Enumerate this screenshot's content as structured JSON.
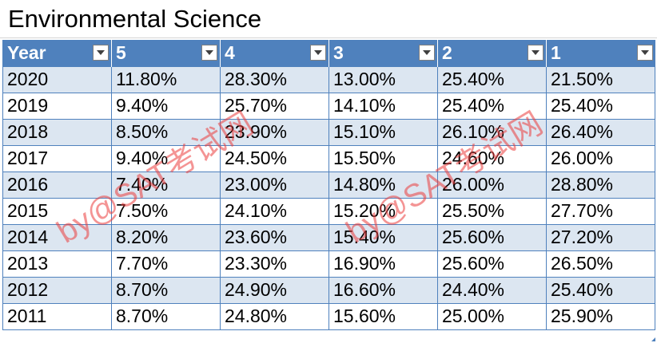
{
  "sheet": {
    "title": "Environmental Science"
  },
  "table": {
    "columns": [
      "Year",
      "5",
      "4",
      "3",
      "2",
      "1"
    ],
    "rows": [
      [
        "2020",
        "11.80%",
        "28.30%",
        "13.00%",
        "25.40%",
        "21.50%"
      ],
      [
        "2019",
        "9.40%",
        "25.70%",
        "14.10%",
        "25.40%",
        "25.40%"
      ],
      [
        "2018",
        "8.50%",
        "23.90%",
        "15.10%",
        "26.10%",
        "26.40%"
      ],
      [
        "2017",
        "9.40%",
        "24.50%",
        "15.50%",
        "24.60%",
        "26.00%"
      ],
      [
        "2016",
        "7.40%",
        "23.00%",
        "14.80%",
        "26.00%",
        "28.80%"
      ],
      [
        "2015",
        "7.50%",
        "24.10%",
        "15.20%",
        "25.50%",
        "27.70%"
      ],
      [
        "2014",
        "8.20%",
        "23.60%",
        "15.40%",
        "25.60%",
        "27.20%"
      ],
      [
        "2013",
        "7.70%",
        "23.30%",
        "16.90%",
        "25.60%",
        "26.50%"
      ],
      [
        "2012",
        "8.70%",
        "24.90%",
        "16.60%",
        "24.40%",
        "25.40%"
      ],
      [
        "2011",
        "8.70%",
        "24.80%",
        "15.60%",
        "25.00%",
        "25.90%"
      ]
    ]
  },
  "watermarks": [
    "by@SAT考试网",
    "by@SAT考试网"
  ],
  "colors": {
    "header_bg": "#4f81bd",
    "band_bg": "#dce6f1",
    "border": "#4f81bd",
    "watermark": "#eb3c3c"
  },
  "icons": {
    "filter": "dropdown-arrow-icon"
  }
}
